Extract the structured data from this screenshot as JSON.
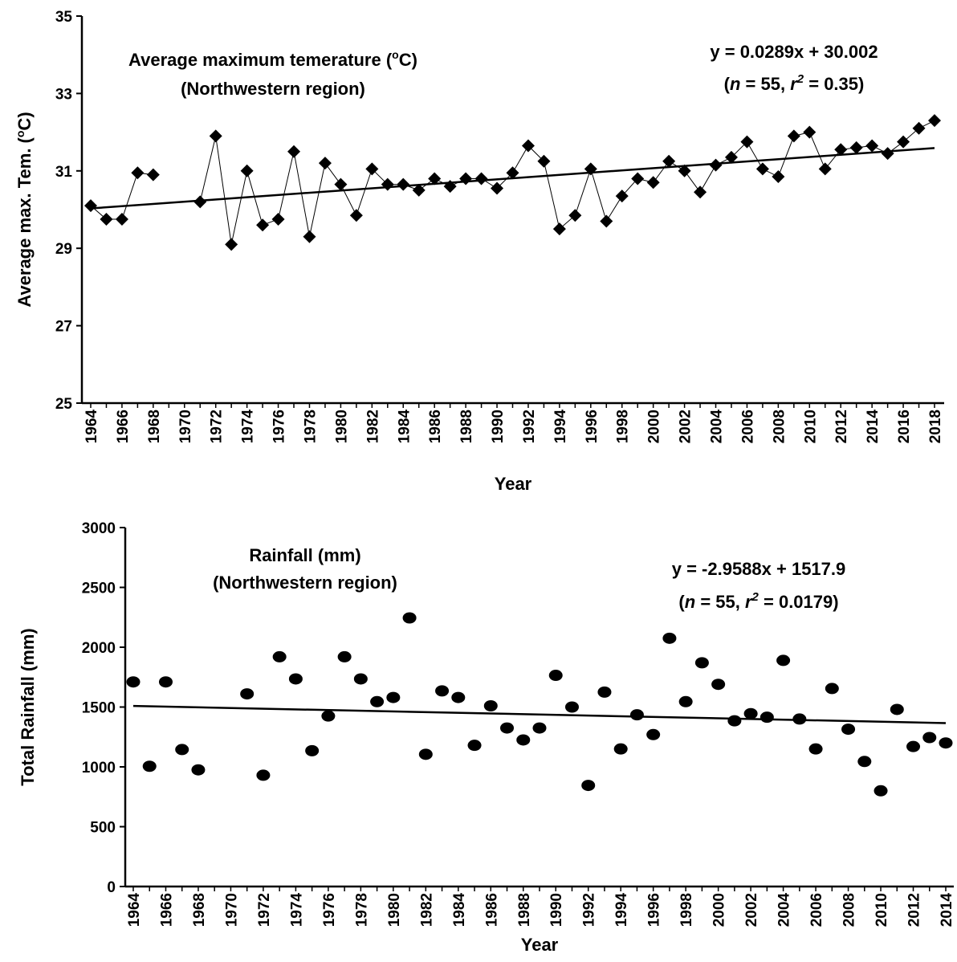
{
  "chart_data": [
    {
      "type": "line",
      "xlabel": "Year",
      "ylabel": "Average max. Tem. (°C)",
      "ylim": [
        25,
        35
      ],
      "yticks": [
        25,
        27,
        29,
        31,
        33,
        35
      ],
      "xlim": [
        1964,
        2018
      ],
      "xticks": [
        1964,
        1966,
        1968,
        1970,
        1972,
        1974,
        1976,
        1978,
        1980,
        1982,
        1984,
        1986,
        1988,
        1990,
        1992,
        1994,
        1996,
        1998,
        2000,
        2002,
        2004,
        2006,
        2008,
        2010,
        2012,
        2014,
        2016,
        2018
      ],
      "annotation": {
        "line1": "Average maximum temerature (",
        "unit": "°C)",
        "line2": "(Northwestern region)"
      },
      "trend": {
        "equation": "y = 0.0289x + 30.002",
        "n_label": "n",
        "n_text": " = 55, ",
        "r_label": "r",
        "r_sup": "2",
        "r_text": " = 0.35)",
        "open": "(",
        "start": [
          1964,
          30.03
        ],
        "end": [
          2018,
          31.59
        ]
      },
      "marker": "diamond",
      "series": [
        {
          "x": [
            1964,
            1965,
            1966,
            1967,
            1968
          ],
          "y": [
            30.1,
            29.75,
            29.75,
            30.95,
            30.9
          ]
        },
        {
          "x": [
            1971,
            1972,
            1973,
            1974,
            1975,
            1976,
            1977,
            1978,
            1979,
            1980,
            1981,
            1982,
            1983,
            1984,
            1985,
            1986,
            1987,
            1988,
            1989,
            1990,
            1991,
            1992,
            1993,
            1994,
            1995,
            1996,
            1997,
            1998,
            1999,
            2000,
            2001,
            2002,
            2003,
            2004,
            2005,
            2006,
            2007,
            2008,
            2009,
            2010,
            2011,
            2012,
            2013,
            2014,
            2015,
            2016,
            2017,
            2018
          ],
          "y": [
            30.2,
            31.9,
            29.1,
            31.0,
            29.6,
            29.75,
            31.5,
            29.3,
            31.2,
            30.65,
            29.85,
            31.05,
            30.65,
            30.65,
            30.5,
            30.8,
            30.6,
            30.8,
            30.8,
            30.55,
            30.95,
            31.65,
            31.25,
            29.5,
            29.85,
            31.05,
            29.7,
            30.35,
            30.8,
            30.7,
            31.25,
            31.0,
            30.45,
            31.15,
            31.35,
            31.75,
            31.05,
            30.85,
            31.9,
            32.0,
            31.05,
            31.55,
            31.6,
            31.65,
            31.45,
            31.75,
            32.1,
            32.3
          ]
        }
      ]
    },
    {
      "type": "scatter",
      "xlabel": "Year",
      "ylabel": "Total Rainfall (mm)",
      "ylim": [
        0,
        3000
      ],
      "yticks": [
        0,
        500,
        1000,
        1500,
        2000,
        2500,
        3000
      ],
      "xlim": [
        1964,
        2014
      ],
      "xticks": [
        1964,
        1966,
        1968,
        1970,
        1972,
        1974,
        1976,
        1978,
        1980,
        1982,
        1984,
        1986,
        1988,
        1990,
        1992,
        1994,
        1996,
        1998,
        2000,
        2002,
        2004,
        2006,
        2008,
        2010,
        2012,
        2014
      ],
      "annotation": {
        "line1": "Rainfall (mm)",
        "line2": "(Northwestern region)"
      },
      "trend": {
        "equation": "y = -2.9588x + 1517.9",
        "n_label": "n",
        "n_text": " = 55, ",
        "r_label": "r",
        "r_sup": "2",
        "r_text": " = 0.0179)",
        "open": "(",
        "start": [
          1964,
          1509
        ],
        "end": [
          2014,
          1366
        ]
      },
      "marker": "circle",
      "series": [
        {
          "x": [
            1964,
            1965,
            1966,
            1967,
            1968,
            1971,
            1972,
            1973,
            1974,
            1975,
            1976,
            1977,
            1978,
            1979,
            1980,
            1981,
            1982,
            1983,
            1984,
            1985,
            1986,
            1987,
            1988,
            1989,
            1990,
            1991,
            1992,
            1993,
            1994,
            1995,
            1996,
            1997,
            1998,
            1999,
            2000,
            2001,
            2002,
            2003,
            2004,
            2005,
            2006,
            2007,
            2008,
            2009,
            2010,
            2011,
            2012,
            2013,
            2014
          ],
          "y": [
            1710,
            1005,
            1710,
            1145,
            975,
            1610,
            930,
            1920,
            1735,
            1135,
            1425,
            1920,
            1735,
            1545,
            1580,
            2245,
            1105,
            1635,
            1580,
            1180,
            1510,
            1325,
            1225,
            1325,
            1765,
            1500,
            845,
            1625,
            1150,
            1435,
            1270,
            2075,
            1545,
            1870,
            1690,
            1385,
            1445,
            1415,
            1890,
            1400,
            1150,
            1655,
            1315,
            1045,
            800,
            1480,
            1170,
            1245,
            1200
          ]
        }
      ]
    }
  ]
}
